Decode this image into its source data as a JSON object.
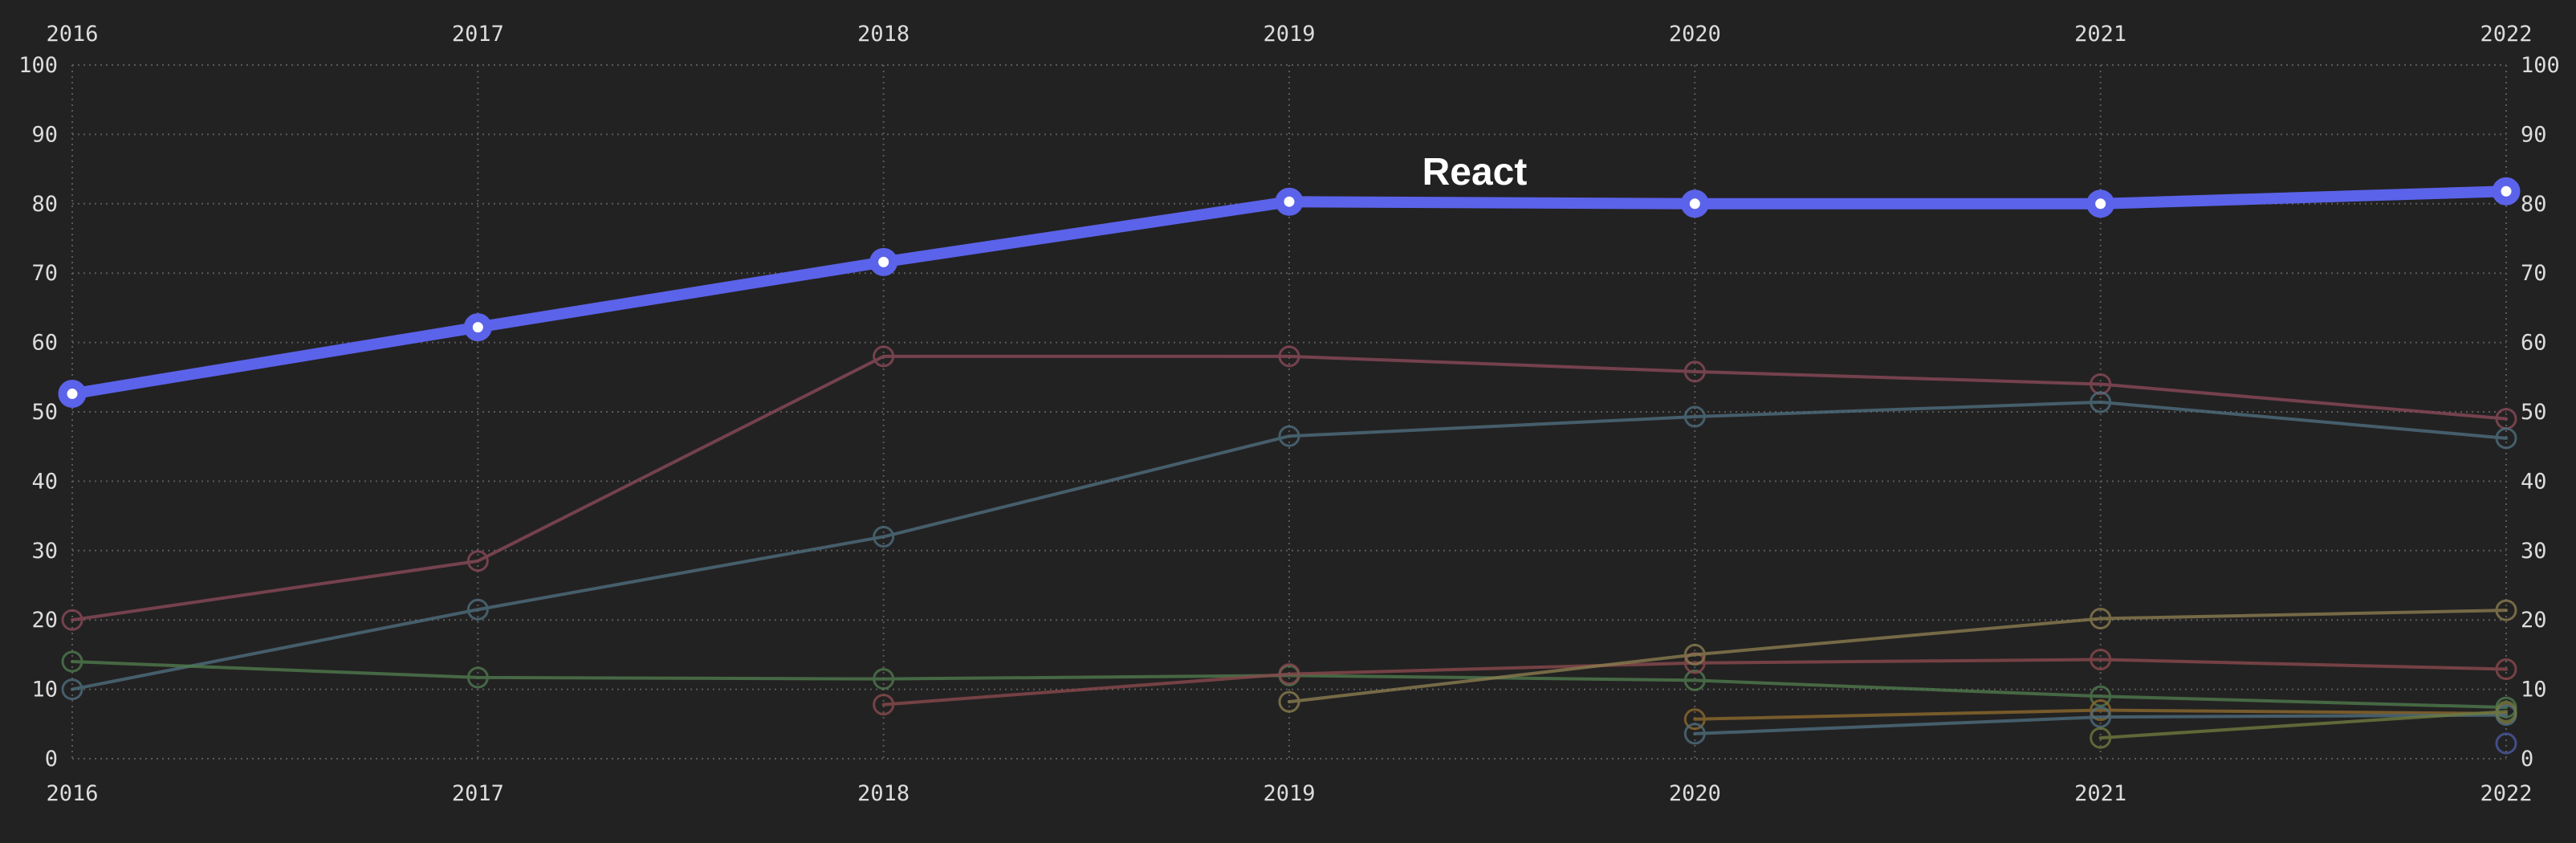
{
  "chart_data": {
    "type": "line",
    "title": "",
    "xlabel": "",
    "ylabel": "",
    "x": [
      2016,
      2017,
      2018,
      2019,
      2020,
      2021,
      2022
    ],
    "ylim": [
      0,
      100
    ],
    "yticks": [
      0,
      10,
      20,
      30,
      40,
      50,
      60,
      70,
      80,
      90,
      100
    ],
    "grid": true,
    "grid_style": "dotted",
    "x_axis_labels": "top and bottom",
    "y_axis_labels": "left and right",
    "background": "#232222",
    "highlighted_series_label": "React",
    "series": [
      {
        "name": "React",
        "color": "#5b63ea",
        "highlight": true,
        "values": [
          52.6,
          62.2,
          71.6,
          80.3,
          80.0,
          80.0,
          81.8
        ]
      },
      {
        "color": "#8a4a5a",
        "highlight": false,
        "values": [
          20.0,
          28.5,
          58.0,
          58.0,
          55.8,
          54.0,
          49.0
        ]
      },
      {
        "color": "#4e6e7e",
        "highlight": false,
        "values": [
          10.0,
          21.5,
          32.0,
          46.5,
          49.3,
          51.4,
          46.2
        ]
      },
      {
        "color": "#4f7a4e",
        "highlight": false,
        "values": [
          14.0,
          11.7,
          11.5,
          12.0,
          11.3,
          9.0,
          7.4
        ]
      },
      {
        "color": "#8a4a4e",
        "highlight": false,
        "values": [
          null,
          null,
          7.8,
          12.2,
          13.8,
          14.3,
          12.9
        ]
      },
      {
        "color": "#8a7d50",
        "highlight": false,
        "values": [
          null,
          null,
          null,
          8.2,
          15.0,
          20.2,
          21.4
        ]
      },
      {
        "color": "#8c6a2e",
        "highlight": false,
        "values": [
          null,
          null,
          null,
          null,
          5.7,
          7.0,
          6.5
        ]
      },
      {
        "color": "#4e6e7e",
        "highlight": false,
        "values": [
          null,
          null,
          null,
          null,
          3.6,
          6.0,
          6.3
        ]
      },
      {
        "color": "#6e7a3e",
        "highlight": false,
        "values": [
          null,
          null,
          null,
          null,
          null,
          3.0,
          6.8
        ]
      },
      {
        "color": "#4a5aa0",
        "highlight": false,
        "values": [
          null,
          null,
          null,
          null,
          null,
          null,
          2.2
        ]
      }
    ]
  }
}
